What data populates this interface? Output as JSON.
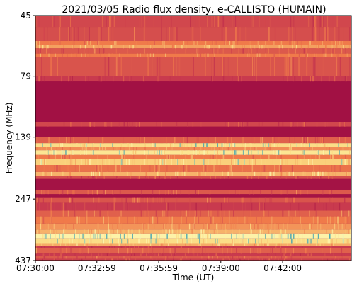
{
  "chart_data": {
    "type": "heatmap",
    "title": "2021/03/05  Radio flux density, e-CALLISTO (HUMAIN)",
    "xlabel": "Time (UT)",
    "ylabel": "Frequency (MHz)",
    "x_ticks": [
      "07:30:00",
      "07:32:59",
      "07:35:59",
      "07:39:00",
      "07:42:00"
    ],
    "y_ticks": [
      "45",
      "79",
      "139",
      "247",
      "437"
    ],
    "xlim": [
      "07:30:00",
      "07:45:20"
    ],
    "ylim_mhz": [
      45,
      437
    ],
    "y_axis_inverted": true,
    "colormap": "spectral (dark red = low, yellow = mid, teal = high)",
    "colors": {
      "low": "#9c0b43",
      "mid_low": "#c93a4e",
      "mid": "#f07a4a",
      "mid_high": "#fbd87f",
      "high": "#fdf7b0",
      "peak": "#4aa5b0"
    },
    "bands": [
      {
        "f_low_mhz": 45,
        "f_high_mhz": 50,
        "level": 0.35
      },
      {
        "f_low_mhz": 50,
        "f_high_mhz": 57,
        "level": 0.38
      },
      {
        "f_low_mhz": 57,
        "f_high_mhz": 59,
        "level": 0.55
      },
      {
        "f_low_mhz": 59,
        "f_high_mhz": 61,
        "level": 0.65
      },
      {
        "f_low_mhz": 61,
        "f_high_mhz": 64,
        "level": 0.42
      },
      {
        "f_low_mhz": 64,
        "f_high_mhz": 66,
        "level": 0.55
      },
      {
        "f_low_mhz": 66,
        "f_high_mhz": 79,
        "level": 0.4
      },
      {
        "f_low_mhz": 79,
        "f_high_mhz": 83,
        "level": 0.3
      },
      {
        "f_low_mhz": 83,
        "f_high_mhz": 121,
        "level": 0.04
      },
      {
        "f_low_mhz": 121,
        "f_high_mhz": 126,
        "level": 0.35
      },
      {
        "f_low_mhz": 126,
        "f_high_mhz": 139,
        "level": 0.04
      },
      {
        "f_low_mhz": 139,
        "f_high_mhz": 147,
        "level": 0.45
      },
      {
        "f_low_mhz": 147,
        "f_high_mhz": 152,
        "level": 0.82
      },
      {
        "f_low_mhz": 152,
        "f_high_mhz": 157,
        "level": 0.6
      },
      {
        "f_low_mhz": 157,
        "f_high_mhz": 164,
        "level": 0.85
      },
      {
        "f_low_mhz": 164,
        "f_high_mhz": 170,
        "level": 0.55
      },
      {
        "f_low_mhz": 170,
        "f_high_mhz": 180,
        "level": 0.78
      },
      {
        "f_low_mhz": 180,
        "f_high_mhz": 192,
        "level": 0.52
      },
      {
        "f_low_mhz": 192,
        "f_high_mhz": 199,
        "level": 0.7
      },
      {
        "f_low_mhz": 199,
        "f_high_mhz": 205,
        "level": 0.38
      },
      {
        "f_low_mhz": 205,
        "f_high_mhz": 227,
        "level": 0.05
      },
      {
        "f_low_mhz": 227,
        "f_high_mhz": 236,
        "level": 0.42
      },
      {
        "f_low_mhz": 236,
        "f_high_mhz": 243,
        "level": 0.05
      },
      {
        "f_low_mhz": 243,
        "f_high_mhz": 256,
        "level": 0.4
      },
      {
        "f_low_mhz": 256,
        "f_high_mhz": 275,
        "level": 0.3
      },
      {
        "f_low_mhz": 275,
        "f_high_mhz": 290,
        "level": 0.45
      },
      {
        "f_low_mhz": 290,
        "f_high_mhz": 310,
        "level": 0.55
      },
      {
        "f_low_mhz": 310,
        "f_high_mhz": 328,
        "level": 0.62
      },
      {
        "f_low_mhz": 328,
        "f_high_mhz": 340,
        "level": 0.7
      },
      {
        "f_low_mhz": 340,
        "f_high_mhz": 356,
        "level": 0.9
      },
      {
        "f_low_mhz": 356,
        "f_high_mhz": 372,
        "level": 0.82
      },
      {
        "f_low_mhz": 372,
        "f_high_mhz": 383,
        "level": 0.68
      },
      {
        "f_low_mhz": 383,
        "f_high_mhz": 390,
        "level": 0.3
      },
      {
        "f_low_mhz": 390,
        "f_high_mhz": 410,
        "level": 0.45
      },
      {
        "f_low_mhz": 410,
        "f_high_mhz": 418,
        "level": 0.3
      },
      {
        "f_low_mhz": 418,
        "f_high_mhz": 430,
        "level": 0.42
      },
      {
        "f_low_mhz": 430,
        "f_high_mhz": 437,
        "level": 0.32
      }
    ]
  }
}
